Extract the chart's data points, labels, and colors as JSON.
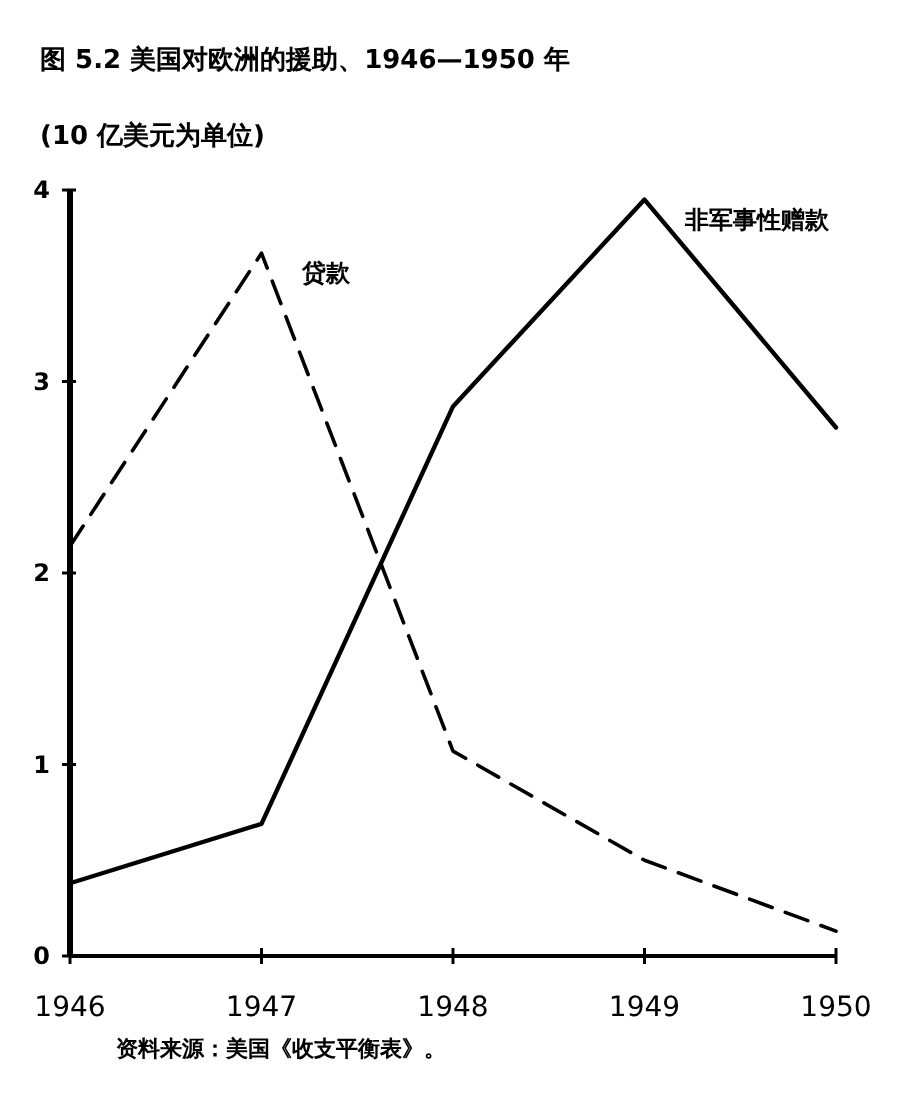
{
  "chart_data": {
    "type": "line",
    "title": "图 5.2 美国对欧洲的援助、1946—1950 年",
    "ylabel": "(10 亿美元为单位)",
    "x": [
      1946,
      1947,
      1948,
      1949,
      1950
    ],
    "series": [
      {
        "name": "贷款",
        "color": "#000000",
        "line_style": "dashed",
        "values": [
          2.14,
          3.67,
          1.07,
          0.5,
          0.13
        ]
      },
      {
        "name": "非军事性赠款",
        "color": "#000000",
        "line_style": "solid",
        "values": [
          0.38,
          0.69,
          2.87,
          3.95,
          2.76
        ]
      }
    ],
    "xlim": [
      1946,
      1950
    ],
    "xticks": [
      1946,
      1947,
      1948,
      1949,
      1950
    ],
    "ylim": [
      0,
      4
    ],
    "yticks": [
      0,
      1,
      2,
      3,
      4
    ],
    "grid": false,
    "legend": false,
    "marker": "none",
    "annotations": [
      "资料来源：美国《收支平衡表》。"
    ]
  }
}
